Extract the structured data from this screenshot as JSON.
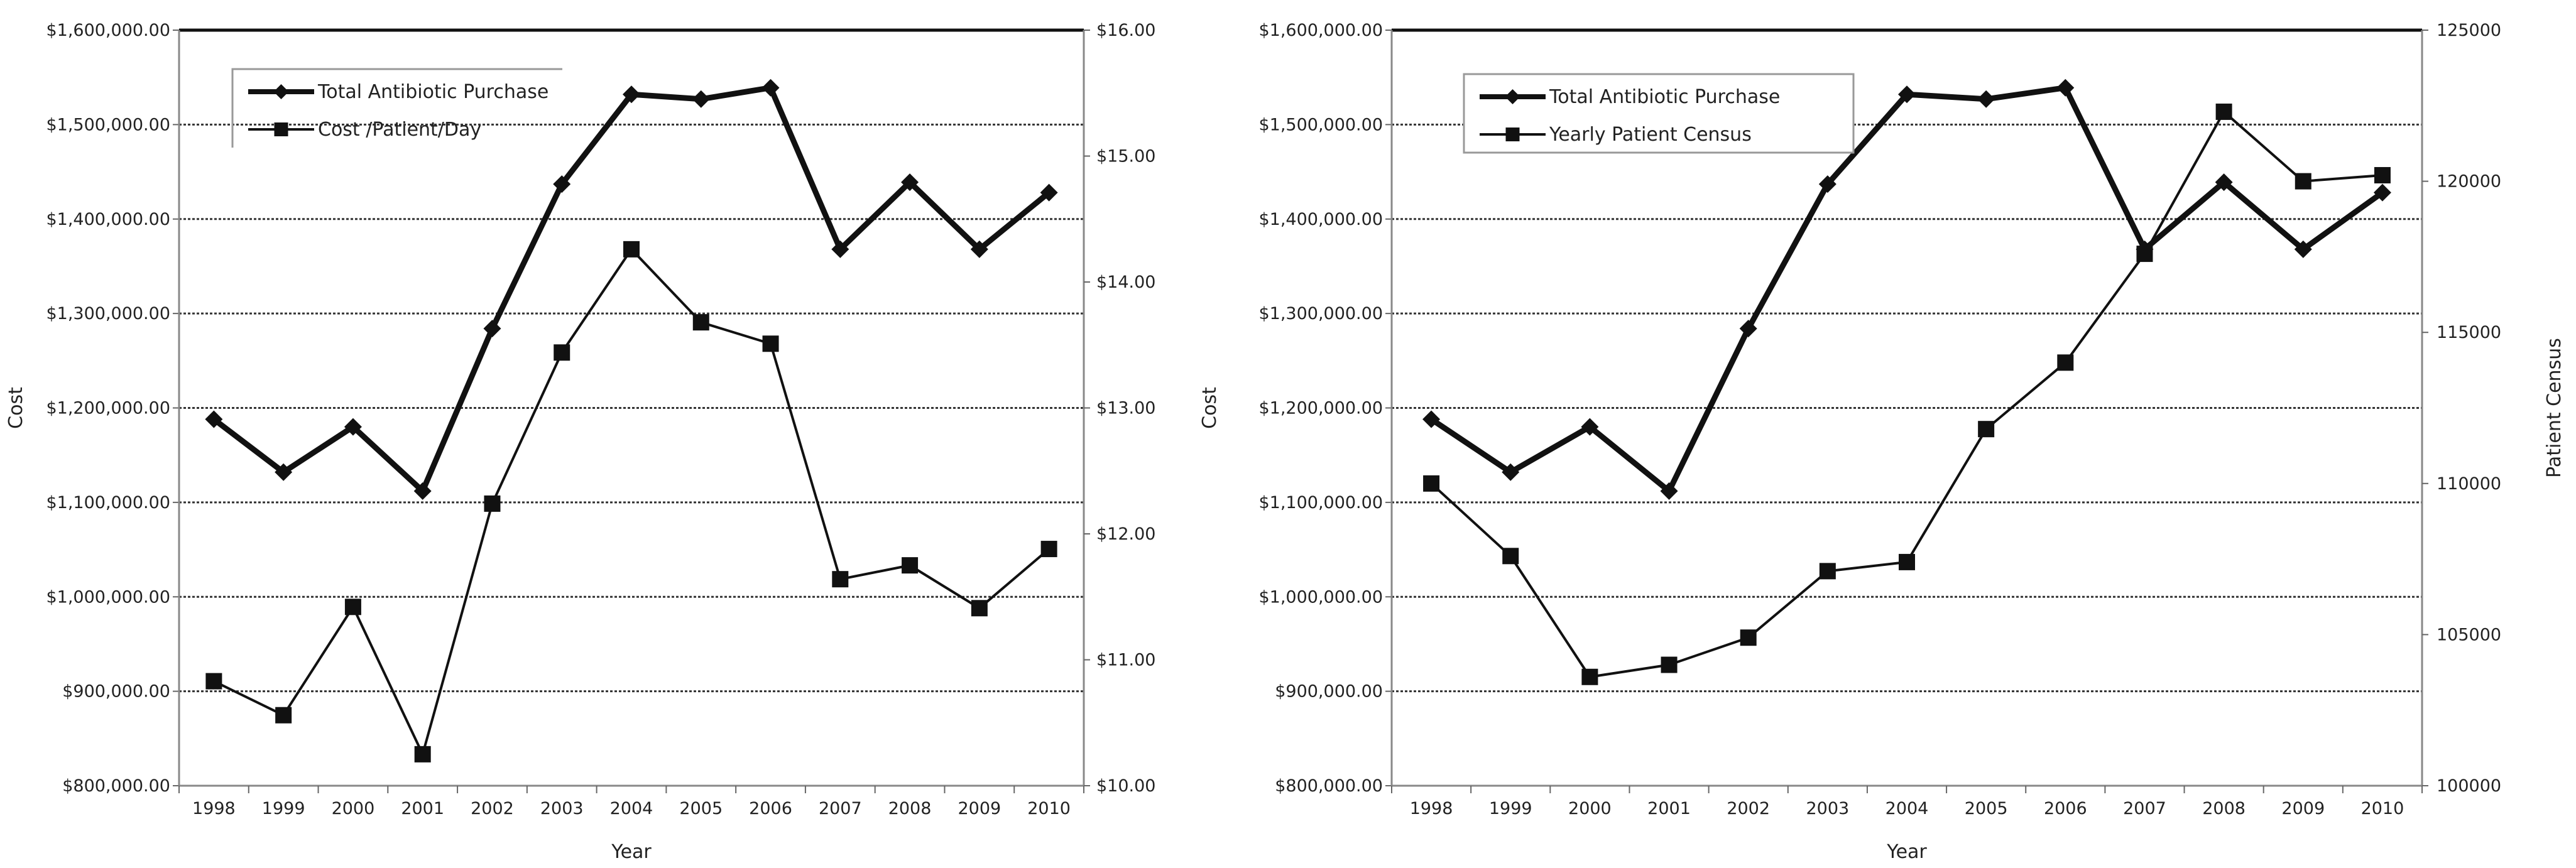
{
  "chart_data": [
    {
      "type": "line",
      "title": "",
      "xlabel": "Year",
      "ylabel": "Cost",
      "y2label": "",
      "categories": [
        "1998",
        "1999",
        "2000",
        "2001",
        "2002",
        "2003",
        "2004",
        "2005",
        "2006",
        "2007",
        "2008",
        "2009",
        "2010"
      ],
      "ylim": [
        800000,
        1600000
      ],
      "y2lim": [
        10,
        16
      ],
      "yticks": [
        "$800,000.00",
        "$900,000.00",
        "$1,000,000.00",
        "$1,100,000.00",
        "$1,200,000.00",
        "$1,300,000.00",
        "$1,400,000.00",
        "$1,500,000.00",
        "$1,600,000.00"
      ],
      "y2ticks": [
        "$10.00",
        "$11.00",
        "$12.00",
        "$13.00",
        "$14.00",
        "$15.00",
        "$16.00"
      ],
      "grid": true,
      "legend_position": "top-left",
      "series": [
        {
          "name": "Total Antibiotic Purchase",
          "axis": "left",
          "marker": "diamond",
          "values": [
            1188000,
            1132000,
            1180000,
            1112000,
            1284000,
            1437000,
            1532000,
            1527000,
            1539000,
            1368000,
            1439000,
            1368000,
            1428000
          ]
        },
        {
          "name": "Cost /Patient/Day",
          "axis": "right",
          "marker": "square",
          "values": [
            10.83,
            10.56,
            11.42,
            10.25,
            12.24,
            13.44,
            14.26,
            13.68,
            13.51,
            11.64,
            11.75,
            11.41,
            11.88
          ]
        }
      ]
    },
    {
      "type": "line",
      "title": "",
      "xlabel": "Year",
      "ylabel": "Cost",
      "y2label": "Patient Census",
      "categories": [
        "1998",
        "1999",
        "2000",
        "2001",
        "2002",
        "2003",
        "2004",
        "2005",
        "2006",
        "2007",
        "2008",
        "2009",
        "2010"
      ],
      "ylim": [
        800000,
        1600000
      ],
      "y2lim": [
        100000,
        125000
      ],
      "yticks": [
        "$800,000.00",
        "$900,000.00",
        "$1,000,000.00",
        "$1,100,000.00",
        "$1,200,000.00",
        "$1,300,000.00",
        "$1,400,000.00",
        "$1,500,000.00",
        "$1,600,000.00"
      ],
      "y2ticks": [
        "100000",
        "105000",
        "110000",
        "115000",
        "120000",
        "125000"
      ],
      "grid": true,
      "legend_position": "top-left",
      "series": [
        {
          "name": "Total Antibiotic Purchase",
          "axis": "left",
          "marker": "diamond",
          "values": [
            1188000,
            1132000,
            1180000,
            1112000,
            1284000,
            1437000,
            1532000,
            1527000,
            1539000,
            1368000,
            1439000,
            1368000,
            1428000
          ]
        },
        {
          "name": "Yearly Patient Census",
          "axis": "right",
          "marker": "square",
          "values": [
            110000,
            107600,
            103600,
            104000,
            104900,
            107100,
            107400,
            111800,
            114000,
            117600,
            122300,
            120000,
            120200
          ]
        }
      ]
    }
  ]
}
